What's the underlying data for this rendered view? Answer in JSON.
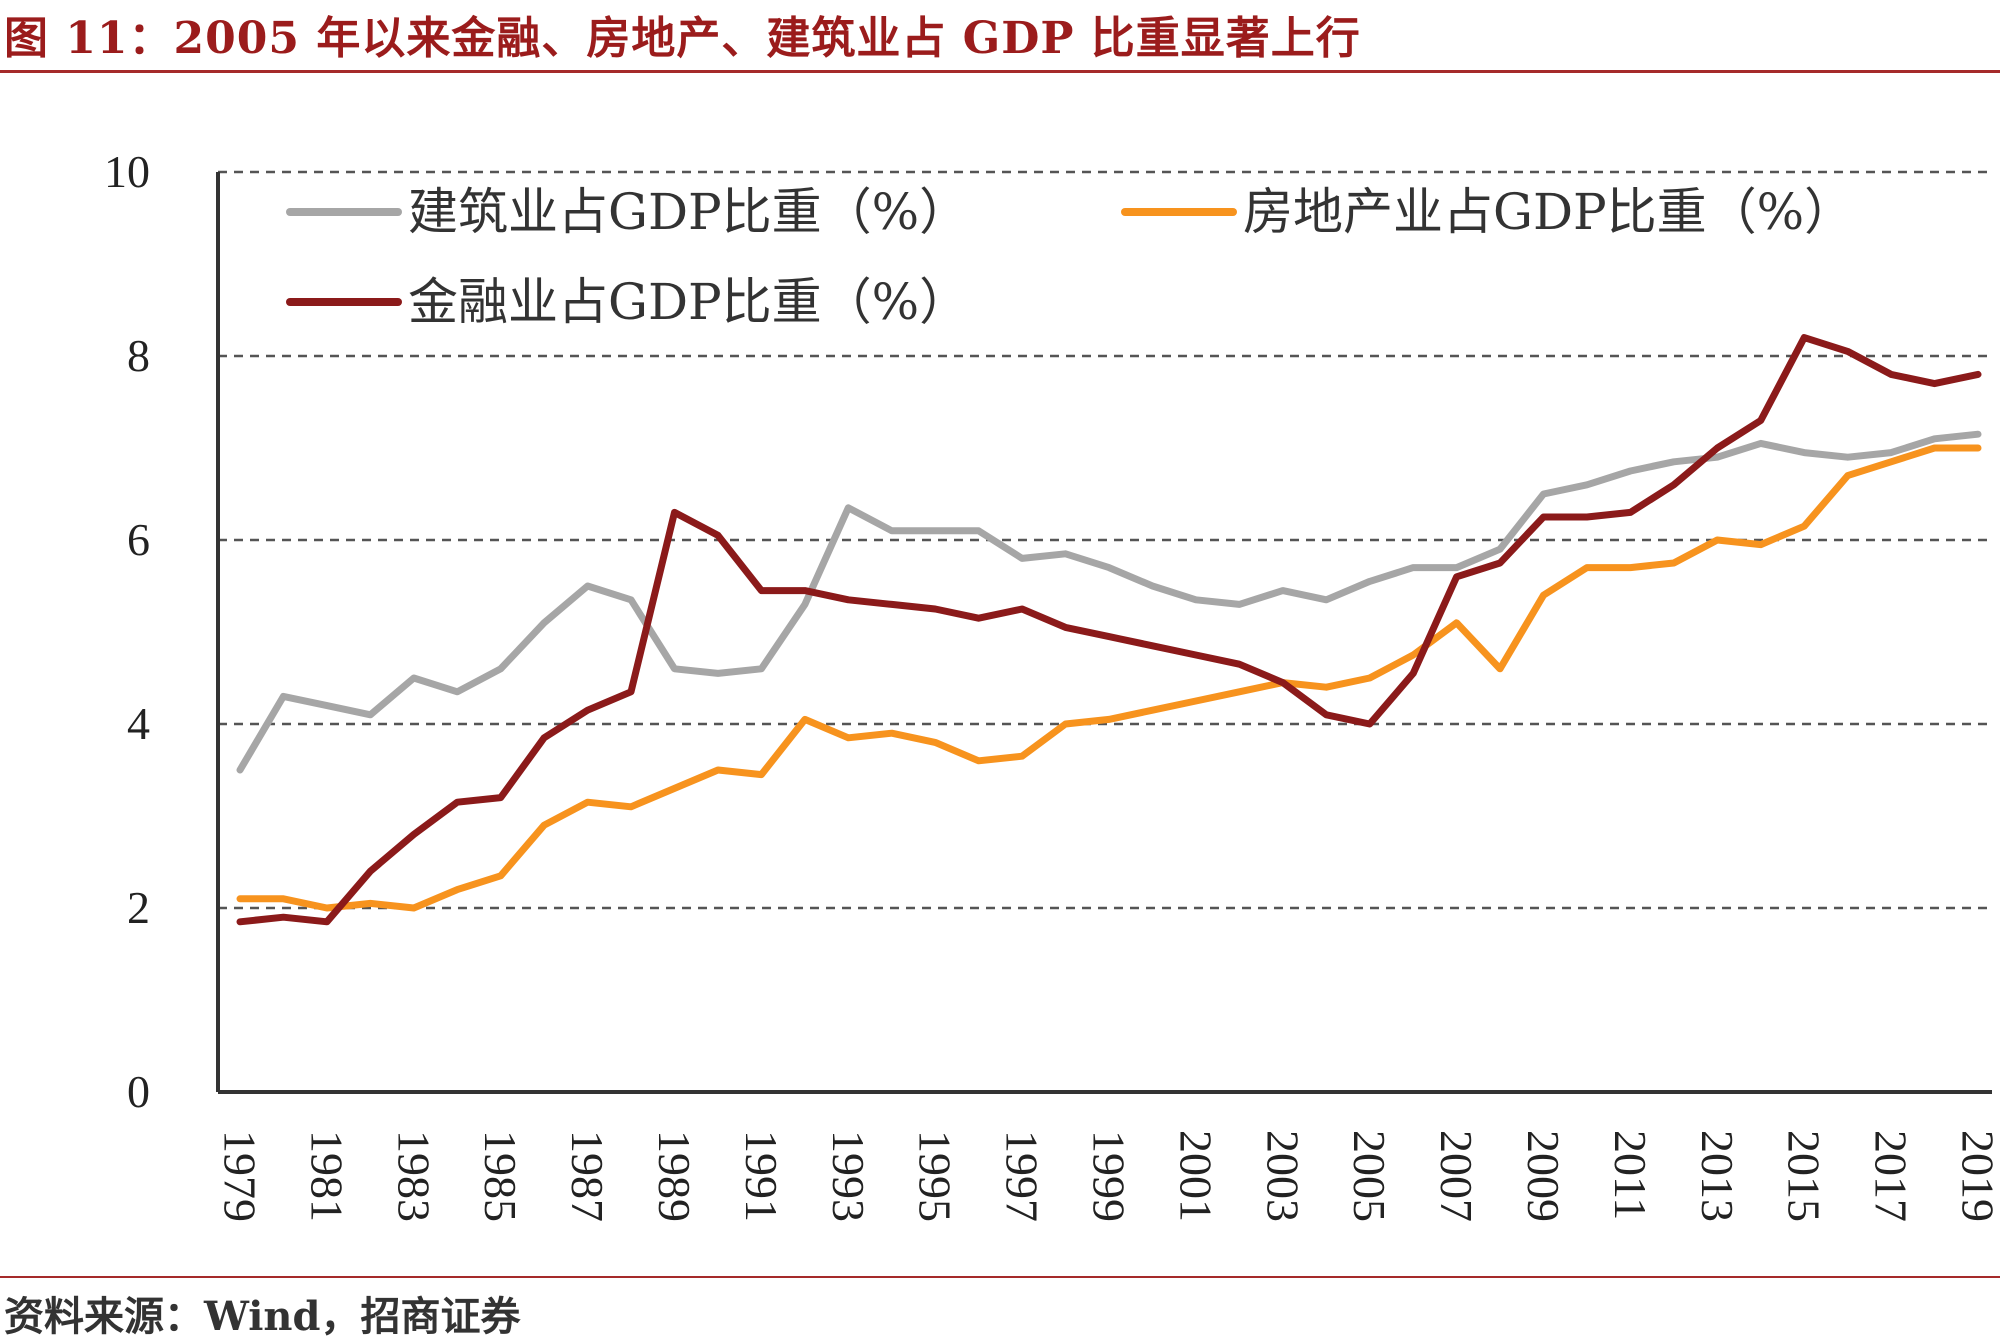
{
  "figure": {
    "title": "图 11：2005 年以来金融、房地产、建筑业占 GDP 比重显著上行",
    "source": "资料来源：Wind，招商证券"
  },
  "colors": {
    "title": "#9b1c1c",
    "rule": "#a52a2a",
    "construction": "#a6a6a6",
    "real_estate": "#f7931e",
    "finance": "#8b1a1a",
    "grid": "#555555",
    "axis": "#333333"
  },
  "chart_data": {
    "type": "line",
    "title": "",
    "xlabel": "",
    "ylabel": "",
    "ylim": [
      0,
      10
    ],
    "yticks": [
      0,
      2,
      4,
      6,
      8,
      10
    ],
    "xtick_labels": [
      "1979",
      "1981",
      "1983",
      "1985",
      "1987",
      "1989",
      "1991",
      "1993",
      "1995",
      "1997",
      "1999",
      "2001",
      "2003",
      "2005",
      "2007",
      "2009",
      "2011",
      "2013",
      "2015",
      "2017",
      "2019"
    ],
    "grid": "horizontal dashed",
    "legend_position": "top-left",
    "x": [
      1979,
      1980,
      1981,
      1982,
      1983,
      1984,
      1985,
      1986,
      1987,
      1988,
      1989,
      1990,
      1991,
      1992,
      1993,
      1994,
      1995,
      1996,
      1997,
      1998,
      1999,
      2000,
      2001,
      2002,
      2003,
      2004,
      2005,
      2006,
      2007,
      2008,
      2009,
      2010,
      2011,
      2012,
      2013,
      2014,
      2015,
      2016,
      2017,
      2018,
      2019
    ],
    "series": [
      {
        "name": "建筑业占GDP比重（%）",
        "color": "#a6a6a6",
        "values": [
          3.5,
          4.3,
          4.2,
          4.1,
          4.5,
          4.35,
          4.6,
          5.1,
          5.5,
          5.35,
          4.6,
          4.55,
          4.6,
          5.3,
          6.35,
          6.1,
          6.1,
          6.1,
          5.8,
          5.85,
          5.7,
          5.5,
          5.35,
          5.3,
          5.45,
          5.35,
          5.55,
          5.7,
          5.7,
          5.9,
          6.5,
          6.6,
          6.75,
          6.85,
          6.9,
          7.05,
          6.95,
          6.9,
          6.95,
          7.1,
          7.15
        ]
      },
      {
        "name": "房地产业占GDP比重（%）",
        "color": "#f7931e",
        "values": [
          2.1,
          2.1,
          2.0,
          2.05,
          2.0,
          2.2,
          2.35,
          2.9,
          3.15,
          3.1,
          3.3,
          3.5,
          3.45,
          4.05,
          3.85,
          3.9,
          3.8,
          3.6,
          3.65,
          4.0,
          4.05,
          4.15,
          4.25,
          4.35,
          4.45,
          4.4,
          4.5,
          4.75,
          5.1,
          4.6,
          5.4,
          5.7,
          5.7,
          5.75,
          6.0,
          5.95,
          6.15,
          6.7,
          6.85,
          7.0,
          7.0
        ]
      },
      {
        "name": "金融业占GDP比重（%）",
        "color": "#8b1a1a",
        "values": [
          1.85,
          1.9,
          1.85,
          2.4,
          2.8,
          3.15,
          3.2,
          3.85,
          4.15,
          4.35,
          6.3,
          6.05,
          5.45,
          5.45,
          5.35,
          5.3,
          5.25,
          5.15,
          5.25,
          5.05,
          4.95,
          4.85,
          4.75,
          4.65,
          4.45,
          4.1,
          4.0,
          4.55,
          5.6,
          5.75,
          6.25,
          6.25,
          6.3,
          6.6,
          7.0,
          7.3,
          8.2,
          8.05,
          7.8,
          7.7,
          7.8
        ]
      }
    ]
  }
}
